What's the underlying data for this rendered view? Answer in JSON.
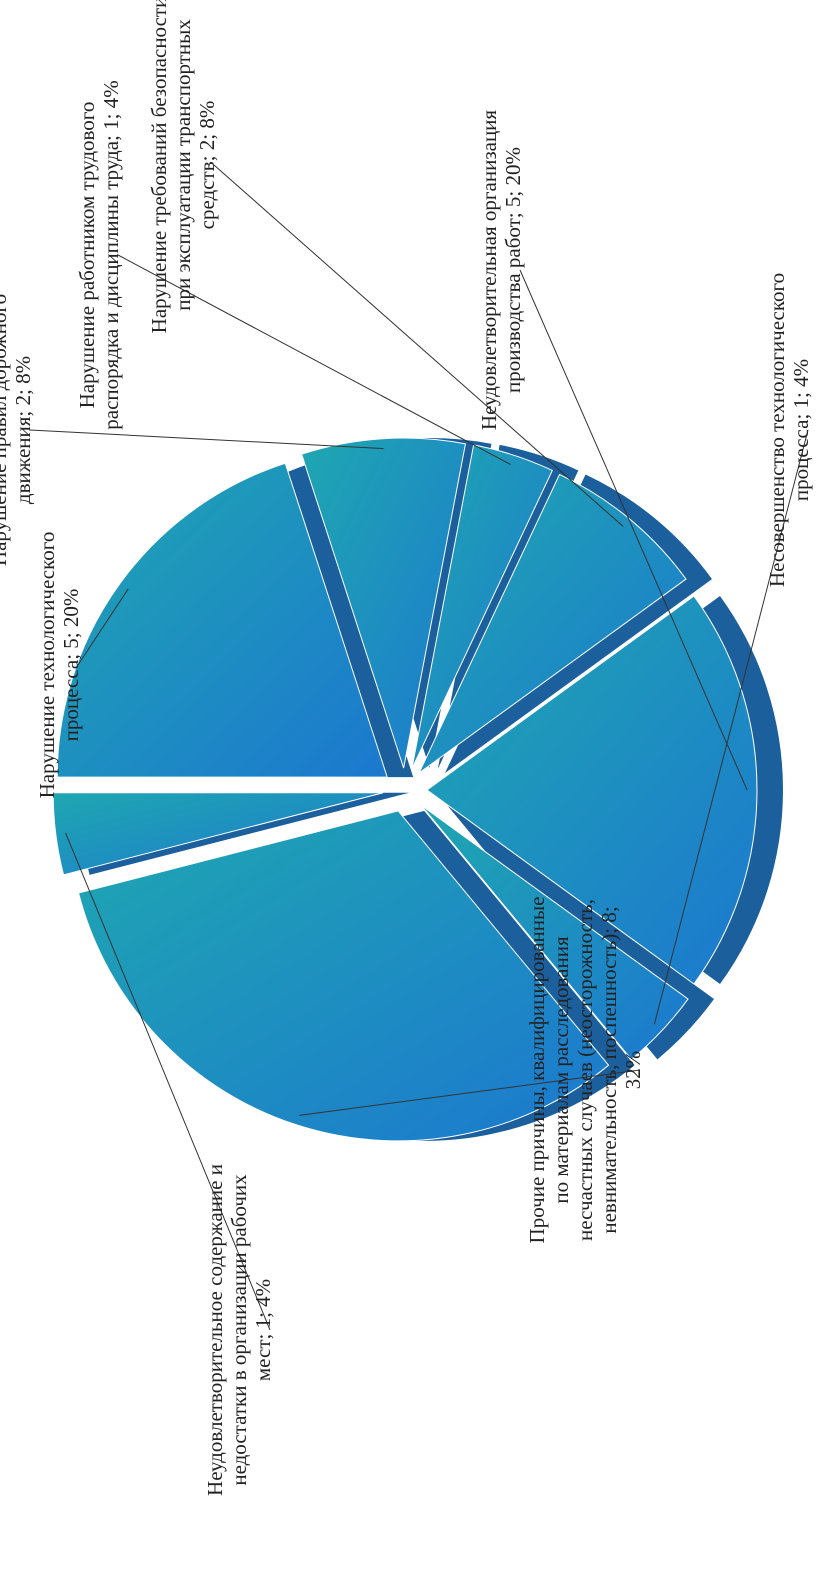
{
  "chart_data": {
    "type": "pie",
    "title": "",
    "orientation": "rotated-90-ccw",
    "exploded": true,
    "style": "3d",
    "colors": {
      "slice_face_a": "#1fa7b1",
      "slice_face_b": "#1c78cf",
      "slice_side": "#1b5f9c",
      "leader": "#333333",
      "text": "#222222"
    },
    "slices": [
      {
        "category": "Нарушение технологического процесса",
        "value": 5,
        "percent": 20,
        "label_lines": [
          "Нарушение технологического",
          "процесса; 5; 20%"
        ]
      },
      {
        "category": "Нарушение правил дорожного движения",
        "value": 2,
        "percent": 8,
        "label_lines": [
          "Нарушение правил дорожного",
          "движения; 2; 8%"
        ]
      },
      {
        "category": "Нарушение работником трудового распорядка и дисциплины труда",
        "value": 1,
        "percent": 4,
        "label_lines": [
          "Нарушение работником трудового",
          "распорядка и дисциплины труда; 1; 4%"
        ]
      },
      {
        "category": "Нарушение требований безопасности при эксплуатации транспортных средств",
        "value": 2,
        "percent": 8,
        "label_lines": [
          "Нарушение требований безопасности",
          "при эксплуатации транспортных",
          "средств; 2; 8%"
        ]
      },
      {
        "category": "Неудовлетворительная организация производства работ",
        "value": 5,
        "percent": 20,
        "label_lines": [
          "Неудовлетворительная организация",
          "производства работ; 5; 20%"
        ]
      },
      {
        "category": "Несовершенство технологического процесса",
        "value": 1,
        "percent": 4,
        "label_lines": [
          "Несовершенство технологического",
          "процесса; 1; 4%"
        ]
      },
      {
        "category": "Прочие причины, квалифицированные по материалам расследования несчастных случаев (неосторожность, невнимательность, поспешность)",
        "value": 8,
        "percent": 32,
        "label_lines": [
          "Прочие причины, квалифицированные",
          "по материалам расследования",
          "несчастных случаев (неосторожность,",
          "невнимательность, поспешность); 8;",
          "32%"
        ]
      },
      {
        "category": "Неудовлетворительное содержание и недостатки в организации рабочих мест",
        "value": 1,
        "percent": 4,
        "label_lines": [
          "Неудовлетворительное содержание и",
          "недостатки в организации рабочих",
          "мест; 1; 4%"
        ]
      }
    ]
  }
}
